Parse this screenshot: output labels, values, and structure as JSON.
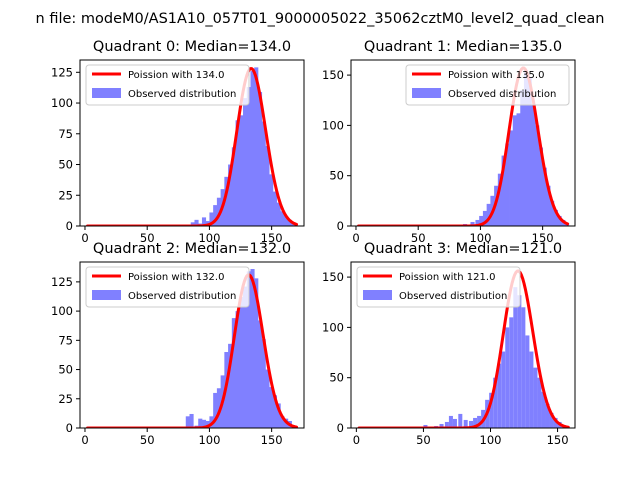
{
  "figure": {
    "title": "n file: modeM0/AS1A10_057T01_9000005022_35062cztM0_level2_quad_clean",
    "colors": {
      "poisson_line": "#ff0000",
      "histogram_fill": "#8080ff",
      "axes": "#000000",
      "legend_border": "#cccccc"
    }
  },
  "chart_data": [
    {
      "type": "bar",
      "title": "Quadrant 0: Median=134.0",
      "xlabel": "",
      "ylabel": "",
      "xlim": [
        -4,
        176
      ],
      "ylim": [
        0,
        135
      ],
      "xticks": [
        0,
        50,
        100,
        150
      ],
      "yticks": [
        0,
        25,
        50,
        75,
        100,
        125
      ],
      "legend": {
        "placement": "top-left",
        "line_label": "Poission with 134.0",
        "hist_label": "Observed distribution"
      },
      "series": [
        {
          "name": "Poission with 134.0",
          "type": "line",
          "lambda": 134.0,
          "peak": 128,
          "x_range": [
            2,
            170
          ]
        },
        {
          "name": "Observed distribution",
          "type": "histogram",
          "bin_width": 3.3,
          "bins": [
            [
              78,
              1
            ],
            [
              85,
              3
            ],
            [
              88,
              5
            ],
            [
              91,
              2
            ],
            [
              94,
              7
            ],
            [
              97,
              4
            ],
            [
              100,
              11
            ],
            [
              103,
              17
            ],
            [
              106,
              23
            ],
            [
              109,
              30
            ],
            [
              112,
              40
            ],
            [
              115,
              50
            ],
            [
              118,
              64
            ],
            [
              121,
              86
            ],
            [
              124,
              90
            ],
            [
              127,
              104
            ],
            [
              130,
              113
            ],
            [
              133,
              126
            ],
            [
              136,
              129
            ],
            [
              139,
              109
            ],
            [
              142,
              85
            ],
            [
              145,
              65
            ],
            [
              148,
              42
            ],
            [
              151,
              28
            ],
            [
              154,
              19
            ],
            [
              157,
              12
            ],
            [
              160,
              8
            ],
            [
              163,
              5
            ],
            [
              166,
              3
            ]
          ]
        }
      ]
    },
    {
      "type": "bar",
      "title": "Quadrant 1: Median=135.0",
      "xlabel": "",
      "ylabel": "",
      "xlim": [
        -4,
        176
      ],
      "ylim": [
        0,
        165
      ],
      "xticks": [
        0,
        50,
        100,
        150
      ],
      "yticks": [
        0,
        50,
        100,
        150
      ],
      "legend": {
        "placement": "top-right",
        "line_label": "Poission with 135.0",
        "hist_label": "Observed distribution"
      },
      "series": [
        {
          "name": "Poission with 135.0",
          "type": "line",
          "lambda": 135.0,
          "peak": 157,
          "x_range": [
            2,
            170
          ]
        },
        {
          "name": "Observed distribution",
          "type": "histogram",
          "bin_width": 3.3,
          "bins": [
            [
              86,
              2
            ],
            [
              92,
              4
            ],
            [
              96,
              6
            ],
            [
              99,
              10
            ],
            [
              102,
              15
            ],
            [
              105,
              22
            ],
            [
              108,
              30
            ],
            [
              111,
              40
            ],
            [
              114,
              52
            ],
            [
              117,
              70
            ],
            [
              120,
              82
            ],
            [
              123,
              95
            ],
            [
              126,
              110
            ],
            [
              129,
              112
            ],
            [
              132,
              135
            ],
            [
              135,
              155
            ],
            [
              138,
              148
            ],
            [
              141,
              120
            ],
            [
              144,
              100
            ],
            [
              147,
              78
            ],
            [
              150,
              58
            ],
            [
              153,
              40
            ],
            [
              156,
              25
            ],
            [
              159,
              16
            ],
            [
              162,
              10
            ],
            [
              165,
              6
            ],
            [
              168,
              3
            ]
          ]
        }
      ]
    },
    {
      "type": "bar",
      "title": "Quadrant 2: Median=132.0",
      "xlabel": "",
      "ylabel": "",
      "xlim": [
        -4,
        176
      ],
      "ylim": [
        0,
        142
      ],
      "xticks": [
        0,
        50,
        100,
        150
      ],
      "yticks": [
        0,
        25,
        50,
        75,
        100,
        125
      ],
      "legend": {
        "placement": "top-left",
        "line_label": "Poission with 132.0",
        "hist_label": "Observed distribution"
      },
      "series": [
        {
          "name": "Poission with 132.0",
          "type": "line",
          "lambda": 132.0,
          "peak": 131,
          "x_range": [
            2,
            170
          ]
        },
        {
          "name": "Observed distribution",
          "type": "histogram",
          "bin_width": 3.3,
          "bins": [
            [
              81,
              10
            ],
            [
              84,
              12
            ],
            [
              88,
              2
            ],
            [
              91,
              8
            ],
            [
              94,
              7
            ],
            [
              97,
              6
            ],
            [
              100,
              10
            ],
            [
              103,
              30
            ],
            [
              106,
              34
            ],
            [
              109,
              45
            ],
            [
              112,
              65
            ],
            [
              115,
              72
            ],
            [
              118,
              94
            ],
            [
              121,
              100
            ],
            [
              124,
              112
            ],
            [
              127,
              121
            ],
            [
              130,
              134
            ],
            [
              133,
              136
            ],
            [
              136,
              128
            ],
            [
              139,
              92
            ],
            [
              142,
              76
            ],
            [
              145,
              50
            ],
            [
              148,
              35
            ],
            [
              151,
              28
            ],
            [
              154,
              21
            ],
            [
              157,
              10
            ],
            [
              160,
              8
            ],
            [
              163,
              6
            ]
          ]
        }
      ]
    },
    {
      "type": "bar",
      "title": "Quadrant 3: Median=121.0",
      "xlabel": "",
      "ylabel": "",
      "xlim": [
        -4,
        163
      ],
      "ylim": [
        0,
        165
      ],
      "xticks": [
        0,
        50,
        100,
        150
      ],
      "yticks": [
        0,
        50,
        100,
        150
      ],
      "legend": {
        "placement": "top-left",
        "line_label": "Poission with 121.0",
        "hist_label": "Observed distribution"
      },
      "series": [
        {
          "name": "Poission with 121.0",
          "type": "line",
          "lambda": 121.0,
          "peak": 156,
          "x_range": [
            2,
            158
          ]
        },
        {
          "name": "Observed distribution",
          "type": "histogram",
          "bin_width": 3.0,
          "bins": [
            [
              50,
              3
            ],
            [
              58,
              2
            ],
            [
              62,
              4
            ],
            [
              66,
              6
            ],
            [
              69,
              12
            ],
            [
              72,
              9
            ],
            [
              76,
              14
            ],
            [
              80,
              8
            ],
            [
              84,
              7
            ],
            [
              87,
              10
            ],
            [
              90,
              12
            ],
            [
              93,
              18
            ],
            [
              96,
              28
            ],
            [
              99,
              35
            ],
            [
              102,
              50
            ],
            [
              105,
              64
            ],
            [
              108,
              76
            ],
            [
              111,
              100
            ],
            [
              114,
              110
            ],
            [
              117,
              140
            ],
            [
              120,
              132
            ],
            [
              123,
              120
            ],
            [
              126,
              92
            ],
            [
              129,
              76
            ],
            [
              132,
              60
            ],
            [
              135,
              50
            ],
            [
              138,
              36
            ],
            [
              141,
              24
            ],
            [
              144,
              15
            ],
            [
              147,
              10
            ],
            [
              150,
              6
            ],
            [
              153,
              3
            ]
          ]
        }
      ]
    }
  ]
}
